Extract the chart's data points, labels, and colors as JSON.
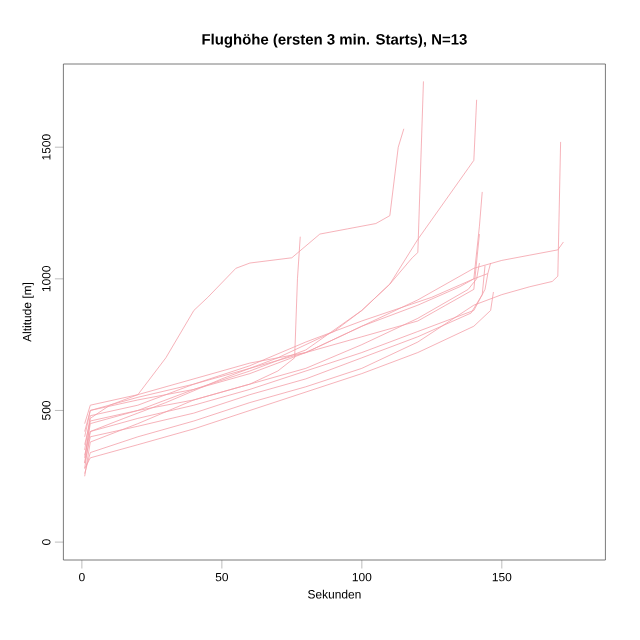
{
  "chart_data": {
    "type": "line",
    "title": "Flughöhe (ersten 3 min. Starts), N=13",
    "xlabel": "Sekunden",
    "ylabel": "Altitude [m]",
    "xlim": [
      -6.6,
      187
    ],
    "ylim": [
      -68,
      1816
    ],
    "xticks": [
      0,
      50,
      100,
      150
    ],
    "yticks": [
      0,
      500,
      1000,
      1500
    ],
    "series": [
      {
        "color": "#f4a0a8",
        "x": [
          1,
          3,
          10,
          20,
          30,
          40,
          45,
          55,
          60,
          75,
          85,
          95,
          105,
          110,
          113,
          115
        ],
        "values": [
          300,
          470,
          520,
          560,
          700,
          880,
          930,
          1040,
          1060,
          1080,
          1170,
          1190,
          1210,
          1240,
          1500,
          1570
        ]
      },
      {
        "color": "#f4a0a8",
        "x": [
          1,
          3,
          15,
          30,
          50,
          70,
          90,
          100,
          110,
          118,
          120,
          122
        ],
        "values": [
          280,
          420,
          470,
          530,
          620,
          700,
          800,
          880,
          980,
          1080,
          1100,
          1750
        ]
      },
      {
        "color": "#f4a0a8",
        "x": [
          1,
          3,
          20,
          40,
          60,
          80,
          100,
          110,
          120,
          130,
          138,
          140,
          141
        ],
        "values": [
          320,
          450,
          500,
          580,
          650,
          730,
          880,
          980,
          1150,
          1300,
          1420,
          1450,
          1680
        ]
      },
      {
        "color": "#f4a0a8",
        "x": [
          1,
          3,
          20,
          40,
          60,
          70,
          76,
          77,
          78
        ],
        "values": [
          250,
          380,
          450,
          540,
          600,
          650,
          700,
          1000,
          1160
        ]
      },
      {
        "color": "#f4a0a8",
        "x": [
          1,
          3,
          20,
          40,
          60,
          80,
          100,
          120,
          135,
          140,
          142,
          143
        ],
        "values": [
          350,
          480,
          520,
          600,
          660,
          720,
          820,
          900,
          970,
          1000,
          1200,
          1330
        ]
      },
      {
        "color": "#f4a0a8",
        "x": [
          1,
          3,
          20,
          40,
          60,
          80,
          100,
          120,
          140,
          150,
          160,
          170,
          172
        ],
        "values": [
          400,
          500,
          540,
          580,
          640,
          720,
          820,
          920,
          1040,
          1070,
          1090,
          1110,
          1140
        ]
      },
      {
        "color": "#f4a0a8",
        "x": [
          1,
          3,
          20,
          40,
          60,
          80,
          100,
          120,
          140,
          150,
          160,
          168,
          170,
          171
        ],
        "values": [
          260,
          340,
          400,
          460,
          530,
          590,
          660,
          760,
          900,
          940,
          970,
          990,
          1010,
          1520
        ]
      },
      {
        "color": "#f4a0a8",
        "x": [
          1,
          3,
          20,
          40,
          60,
          80,
          100,
          120,
          140,
          146,
          147
        ],
        "values": [
          280,
          320,
          370,
          430,
          500,
          570,
          640,
          720,
          820,
          880,
          950
        ]
      },
      {
        "color": "#f4a0a8",
        "x": [
          1,
          3,
          20,
          40,
          60,
          80,
          100,
          120,
          140,
          144,
          145
        ],
        "values": [
          330,
          420,
          470,
          520,
          580,
          650,
          720,
          800,
          880,
          960,
          1020
        ]
      },
      {
        "color": "#f4a0a8",
        "x": [
          1,
          3,
          20,
          40,
          60,
          80,
          100,
          120,
          138,
          141,
          142
        ],
        "values": [
          370,
          460,
          500,
          540,
          600,
          660,
          750,
          850,
          960,
          1000,
          1060
        ]
      },
      {
        "color": "#f4a0a8",
        "x": [
          1,
          3,
          20,
          40,
          60,
          80,
          100,
          120,
          139,
          143,
          144
        ],
        "values": [
          300,
          400,
          440,
          490,
          560,
          620,
          700,
          780,
          870,
          940,
          1050
        ]
      },
      {
        "color": "#f4a0a8",
        "x": [
          1,
          3,
          20,
          40,
          60,
          80,
          100,
          125,
          140,
          145,
          146
        ],
        "values": [
          420,
          500,
          550,
          600,
          670,
          760,
          840,
          930,
          1000,
          1020,
          1060
        ]
      },
      {
        "color": "#f4a0a8",
        "x": [
          1,
          3,
          20,
          40,
          60,
          80,
          100,
          120,
          130,
          140,
          142
        ],
        "values": [
          450,
          520,
          560,
          620,
          680,
          720,
          780,
          840,
          900,
          960,
          1170
        ]
      }
    ]
  }
}
